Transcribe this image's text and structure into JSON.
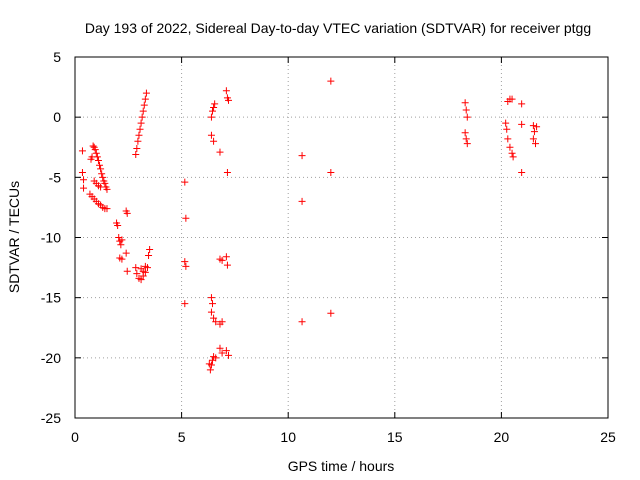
{
  "chart_data": {
    "type": "scatter",
    "title": "Day 193 of 2022, Sidereal Day-to-day VTEC variation (SDTVAR) for receiver ptgg",
    "xlabel": "GPS time / hours",
    "ylabel": "SDTVAR / TECUs",
    "xlim": [
      0,
      25
    ],
    "ylim": [
      -25,
      5
    ],
    "xticks": [
      0,
      5,
      10,
      15,
      20,
      25
    ],
    "yticks": [
      5,
      0,
      -5,
      -10,
      -15,
      -20,
      -25
    ],
    "xtick_labels": [
      "0",
      "5",
      "10",
      "15",
      "20",
      "25"
    ],
    "ytick_labels": [
      "5",
      "0",
      "-5",
      "-10",
      "-15",
      "-20",
      "-25"
    ],
    "grid": true,
    "marker": "+",
    "color": "#ff0000",
    "series": [
      {
        "name": "ptgg",
        "points": [
          [
            0.35,
            -2.8
          ],
          [
            0.35,
            -4.6
          ],
          [
            0.4,
            -5.2
          ],
          [
            0.4,
            -5.9
          ],
          [
            0.75,
            -3.5
          ],
          [
            0.8,
            -3.3
          ],
          [
            0.85,
            -2.4
          ],
          [
            0.9,
            -2.5
          ],
          [
            0.95,
            -2.7
          ],
          [
            1.0,
            -3.0
          ],
          [
            1.05,
            -3.3
          ],
          [
            1.1,
            -3.6
          ],
          [
            1.15,
            -4.0
          ],
          [
            1.2,
            -4.3
          ],
          [
            1.25,
            -4.7
          ],
          [
            1.3,
            -5.0
          ],
          [
            1.35,
            -5.3
          ],
          [
            1.4,
            -5.5
          ],
          [
            1.45,
            -5.8
          ],
          [
            1.5,
            -6.0
          ],
          [
            0.9,
            -5.3
          ],
          [
            1.0,
            -5.5
          ],
          [
            1.1,
            -5.7
          ],
          [
            1.2,
            -5.8
          ],
          [
            0.7,
            -6.4
          ],
          [
            0.8,
            -6.6
          ],
          [
            0.9,
            -6.8
          ],
          [
            1.0,
            -7.0
          ],
          [
            1.1,
            -7.2
          ],
          [
            1.2,
            -7.3
          ],
          [
            1.3,
            -7.5
          ],
          [
            1.4,
            -7.6
          ],
          [
            1.5,
            -7.6
          ],
          [
            1.95,
            -8.8
          ],
          [
            2.0,
            -9.0
          ],
          [
            2.05,
            -10.0
          ],
          [
            2.1,
            -10.3
          ],
          [
            2.15,
            -10.6
          ],
          [
            2.2,
            -10.2
          ],
          [
            2.1,
            -11.7
          ],
          [
            2.2,
            -11.8
          ],
          [
            2.4,
            -7.8
          ],
          [
            2.45,
            -8.0
          ],
          [
            2.4,
            -11.3
          ],
          [
            2.45,
            -12.8
          ],
          [
            2.85,
            -3.1
          ],
          [
            2.9,
            -2.6
          ],
          [
            2.95,
            -2.0
          ],
          [
            3.0,
            -1.5
          ],
          [
            3.05,
            -1.0
          ],
          [
            3.1,
            -0.5
          ],
          [
            3.15,
            0.0
          ],
          [
            3.2,
            0.5
          ],
          [
            3.25,
            1.0
          ],
          [
            3.3,
            1.5
          ],
          [
            3.35,
            2.0
          ],
          [
            2.85,
            -12.5
          ],
          [
            2.9,
            -13.0
          ],
          [
            3.0,
            -13.4
          ],
          [
            3.1,
            -13.5
          ],
          [
            3.2,
            -13.2
          ],
          [
            3.3,
            -12.9
          ],
          [
            3.4,
            -12.5
          ],
          [
            3.45,
            -11.5
          ],
          [
            3.5,
            -11.0
          ],
          [
            3.1,
            -12.6
          ],
          [
            3.2,
            -12.8
          ],
          [
            3.3,
            -12.4
          ],
          [
            5.15,
            -5.4
          ],
          [
            5.2,
            -8.4
          ],
          [
            5.15,
            -12.0
          ],
          [
            5.2,
            -12.4
          ],
          [
            5.15,
            -15.5
          ],
          [
            6.4,
            -15.0
          ],
          [
            6.45,
            -15.5
          ],
          [
            6.4,
            -16.2
          ],
          [
            6.5,
            -16.7
          ],
          [
            6.6,
            -17.0
          ],
          [
            6.8,
            -17.2
          ],
          [
            6.9,
            -17.0
          ],
          [
            6.3,
            -20.5
          ],
          [
            6.35,
            -21.0
          ],
          [
            6.4,
            -20.6
          ],
          [
            6.45,
            -20.2
          ],
          [
            6.5,
            -19.9
          ],
          [
            6.6,
            -20.0
          ],
          [
            6.8,
            -19.2
          ],
          [
            6.9,
            -19.6
          ],
          [
            6.8,
            -11.8
          ],
          [
            6.9,
            -11.9
          ],
          [
            7.1,
            -11.6
          ],
          [
            7.15,
            -12.3
          ],
          [
            7.1,
            -19.4
          ],
          [
            7.2,
            -19.8
          ],
          [
            7.15,
            -4.6
          ],
          [
            6.4,
            0.0
          ],
          [
            6.45,
            0.5
          ],
          [
            6.5,
            0.8
          ],
          [
            6.55,
            1.1
          ],
          [
            6.4,
            -1.5
          ],
          [
            6.5,
            -2.0
          ],
          [
            6.8,
            -2.9
          ],
          [
            7.1,
            2.2
          ],
          [
            7.15,
            1.6
          ],
          [
            7.2,
            1.4
          ],
          [
            10.65,
            -3.2
          ],
          [
            10.65,
            -7.0
          ],
          [
            10.65,
            -17.0
          ],
          [
            12.0,
            3.0
          ],
          [
            12.0,
            -4.6
          ],
          [
            12.0,
            -16.3
          ],
          [
            18.3,
            1.2
          ],
          [
            18.35,
            0.6
          ],
          [
            18.4,
            0.0
          ],
          [
            18.3,
            -1.3
          ],
          [
            18.35,
            -1.8
          ],
          [
            18.4,
            -2.2
          ],
          [
            20.2,
            -0.5
          ],
          [
            20.25,
            -1.0
          ],
          [
            20.3,
            -1.8
          ],
          [
            20.4,
            -2.5
          ],
          [
            20.5,
            -3.0
          ],
          [
            20.55,
            -3.3
          ],
          [
            20.3,
            1.3
          ],
          [
            20.4,
            1.5
          ],
          [
            20.5,
            1.5
          ],
          [
            20.95,
            1.1
          ],
          [
            20.95,
            -0.6
          ],
          [
            20.95,
            -4.6
          ],
          [
            21.5,
            -0.7
          ],
          [
            21.55,
            -1.2
          ],
          [
            21.5,
            -1.8
          ],
          [
            21.6,
            -2.2
          ],
          [
            21.65,
            -0.8
          ]
        ]
      }
    ]
  }
}
